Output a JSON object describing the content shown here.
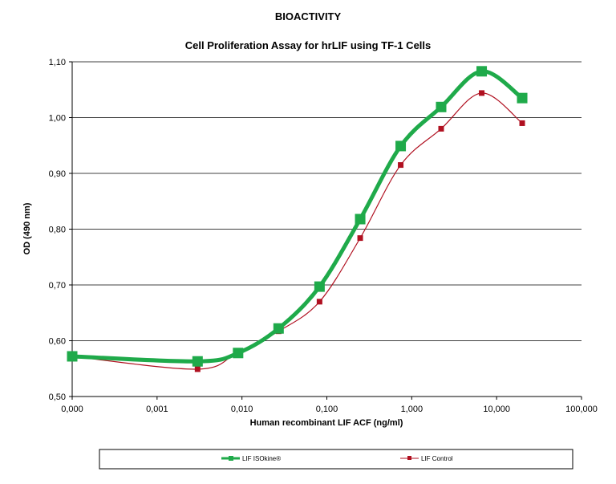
{
  "chart_data": {
    "type": "line",
    "title": "BIOACTIVITY",
    "subtitle": "Cell Proliferation Assay for hrLIF using TF-1  Cells",
    "xlabel": "Human recombinant LIF ACF (ng/ml)",
    "ylabel": "OD (490 nm)",
    "x_scale": "log",
    "x_tick_labels": [
      "0,000",
      "0,001",
      "0,010",
      "0,100",
      "1,000",
      "10,000",
      "100,000"
    ],
    "x_tick_values": [
      0.0001,
      0.001,
      0.01,
      0.1,
      1,
      10,
      100
    ],
    "y_tick_labels": [
      "0,50",
      "0,60",
      "0,70",
      "0,80",
      "0,90",
      "1,00",
      "1,10"
    ],
    "y_tick_values": [
      0.5,
      0.6,
      0.7,
      0.8,
      0.9,
      1.0,
      1.1
    ],
    "ylim": [
      0.5,
      1.1
    ],
    "grid": "horizontal",
    "legend_position": "bottom",
    "series": [
      {
        "name": "LIF ISOkine®",
        "color": "#1faa4a",
        "marker": "square-large",
        "x": [
          0.0001,
          0.003,
          0.009,
          0.027,
          0.082,
          0.247,
          0.741,
          2.22,
          6.67,
          20.0
        ],
        "y": [
          0.572,
          0.563,
          0.578,
          0.622,
          0.697,
          0.818,
          0.949,
          1.019,
          1.083,
          1.035
        ]
      },
      {
        "name": "LIF Control",
        "color": "#b01020",
        "marker": "square-small",
        "x": [
          0.0001,
          0.003,
          0.009,
          0.027,
          0.082,
          0.247,
          0.741,
          2.22,
          6.67,
          20.0
        ],
        "y": [
          0.572,
          0.549,
          0.58,
          0.617,
          0.67,
          0.784,
          0.915,
          0.98,
          1.044,
          0.99
        ]
      }
    ]
  }
}
